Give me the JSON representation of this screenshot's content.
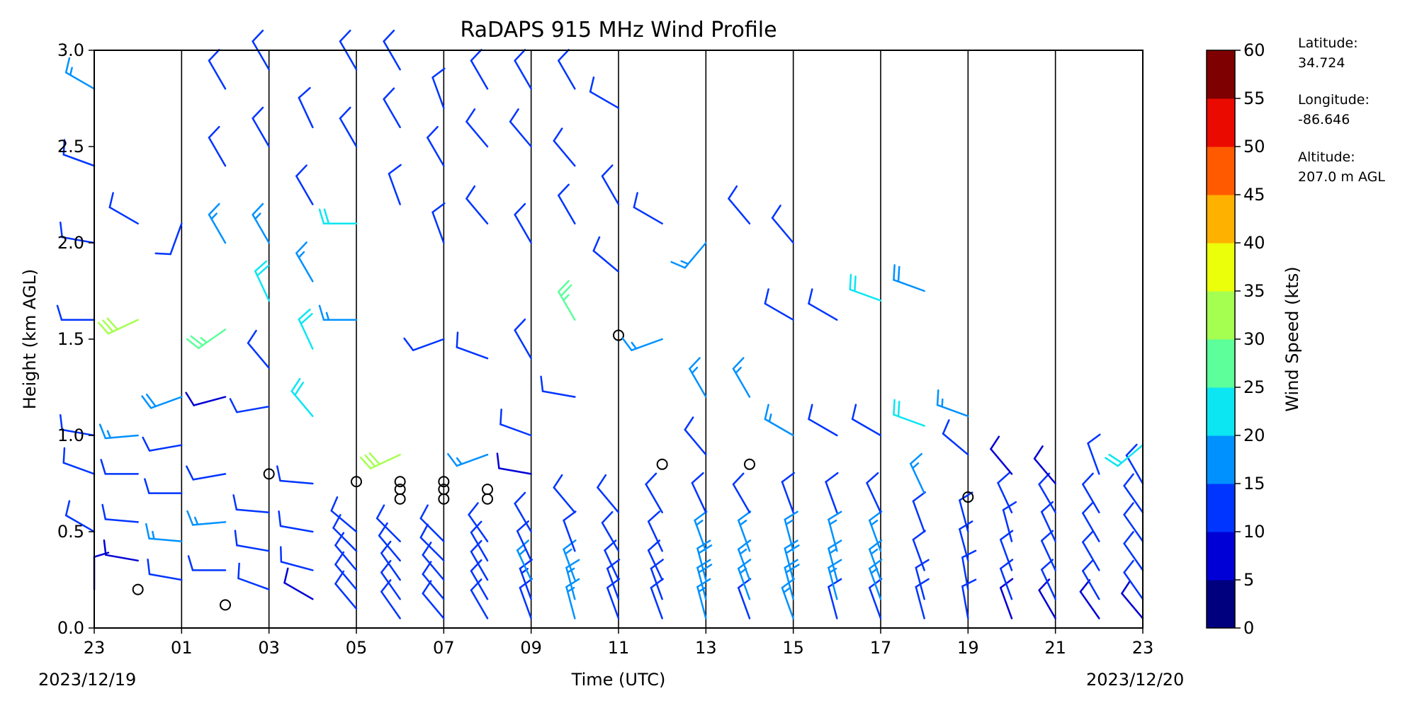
{
  "chart_data": {
    "type": "wind-barb-profile",
    "title": "RaDAPS 915 MHz Wind Profile",
    "xlabel": "Time (UTC)",
    "ylabel": "Height (km AGL)",
    "date_start": "2023/12/19",
    "date_end": "2023/12/20",
    "x_tick_labels": [
      "23",
      "01",
      "03",
      "05",
      "07",
      "09",
      "11",
      "13",
      "15",
      "17",
      "19",
      "21",
      "23"
    ],
    "y_tick_labels": [
      "0.0",
      "0.5",
      "1.0",
      "1.5",
      "2.0",
      "2.5",
      "3.0"
    ],
    "y_ticks": [
      0,
      0.5,
      1,
      1.5,
      2,
      2.5,
      3
    ],
    "ylim": [
      0,
      3
    ],
    "xlim_hours_utc": [
      23,
      47
    ],
    "grid_vertical_hours": [
      25,
      27,
      29,
      31,
      33,
      35,
      37,
      39,
      41,
      43,
      45
    ],
    "colorbar": {
      "label": "Wind Speed (kts)",
      "tick_labels": [
        "0",
        "5",
        "10",
        "15",
        "20",
        "25",
        "30",
        "35",
        "40",
        "45",
        "50",
        "55",
        "60"
      ],
      "range": [
        0,
        60
      ],
      "colors": [
        "#00007f",
        "#0000d6",
        "#0035ff",
        "#0091ff",
        "#0ce6f2",
        "#5cff9a",
        "#a5ff51",
        "#ecff0a",
        "#ffb100",
        "#ff5a00",
        "#eb0a00",
        "#7f0000"
      ]
    },
    "site_info": {
      "latitude_label": "Latitude:",
      "latitude": "34.724",
      "longitude_label": "Longitude:",
      "longitude": "-86.646",
      "altitude_label": "Altitude:",
      "altitude": "207.0 m AGL"
    },
    "profiles": [
      {
        "hour": 23.0,
        "levels": [
          [
            0.2,
            0,
            8
          ],
          [
            0.5,
            300,
            10
          ],
          [
            0.8,
            290,
            10
          ],
          [
            1.0,
            280,
            12
          ],
          [
            1.6,
            270,
            12
          ],
          [
            2.0,
            280,
            12
          ],
          [
            2.4,
            290,
            12
          ],
          [
            2.8,
            300,
            15
          ]
        ]
      },
      {
        "hour": 24.0,
        "levels": [
          [
            0.2,
            0,
            0
          ],
          [
            0.35,
            280,
            8
          ],
          [
            0.55,
            275,
            10
          ],
          [
            0.8,
            270,
            12
          ],
          [
            1.0,
            265,
            15
          ],
          [
            1.6,
            245,
            30
          ],
          [
            2.1,
            300,
            10
          ]
        ]
      },
      {
        "hour": 25.0,
        "levels": [
          [
            0.25,
            280,
            10
          ],
          [
            0.45,
            275,
            15
          ],
          [
            0.7,
            270,
            12
          ],
          [
            0.95,
            260,
            12
          ],
          [
            1.2,
            250,
            18
          ],
          [
            2.1,
            200,
            12
          ]
        ]
      },
      {
        "hour": 26.0,
        "levels": [
          [
            0.12,
            0,
            0
          ],
          [
            0.3,
            270,
            10
          ],
          [
            0.55,
            265,
            15
          ],
          [
            0.8,
            260,
            10
          ],
          [
            1.2,
            255,
            8
          ],
          [
            1.55,
            235,
            25
          ],
          [
            2.0,
            330,
            15
          ],
          [
            2.4,
            330,
            10
          ],
          [
            2.8,
            330,
            12
          ]
        ]
      },
      {
        "hour": 27.0,
        "levels": [
          [
            0.2,
            290,
            10
          ],
          [
            0.4,
            280,
            12
          ],
          [
            0.6,
            275,
            10
          ],
          [
            0.8,
            0,
            0
          ],
          [
            1.15,
            260,
            10
          ],
          [
            1.35,
            320,
            12
          ],
          [
            1.7,
            335,
            22
          ],
          [
            2.0,
            330,
            15
          ],
          [
            2.5,
            330,
            12
          ],
          [
            2.9,
            330,
            10
          ]
        ]
      },
      {
        "hour": 28.0,
        "levels": [
          [
            0.15,
            300,
            8
          ],
          [
            0.3,
            285,
            10
          ],
          [
            0.5,
            280,
            12
          ],
          [
            0.75,
            275,
            10
          ],
          [
            1.1,
            320,
            20
          ],
          [
            1.45,
            335,
            22
          ],
          [
            1.8,
            330,
            15
          ],
          [
            2.2,
            330,
            12
          ],
          [
            2.6,
            335,
            12
          ]
        ]
      },
      {
        "hour": 29.0,
        "levels": [
          [
            0.1,
            320,
            12
          ],
          [
            0.2,
            320,
            12
          ],
          [
            0.3,
            320,
            12
          ],
          [
            0.4,
            315,
            12
          ],
          [
            0.5,
            310,
            12
          ],
          [
            0.76,
            0,
            0
          ],
          [
            1.6,
            270,
            15
          ],
          [
            2.1,
            270,
            20
          ],
          [
            2.5,
            330,
            12
          ],
          [
            2.9,
            330,
            12
          ]
        ]
      },
      {
        "hour": 30.0,
        "levels": [
          [
            0.05,
            325,
            12
          ],
          [
            0.15,
            325,
            12
          ],
          [
            0.25,
            325,
            12
          ],
          [
            0.35,
            320,
            12
          ],
          [
            0.45,
            315,
            12
          ],
          [
            0.67,
            0,
            0
          ],
          [
            0.72,
            0,
            0
          ],
          [
            0.76,
            0,
            0
          ],
          [
            0.9,
            245,
            30
          ],
          [
            2.2,
            340,
            10
          ],
          [
            2.6,
            330,
            12
          ],
          [
            2.9,
            330,
            12
          ]
        ]
      },
      {
        "hour": 31.0,
        "levels": [
          [
            0.05,
            320,
            10
          ],
          [
            0.15,
            320,
            10
          ],
          [
            0.25,
            320,
            12
          ],
          [
            0.35,
            315,
            12
          ],
          [
            0.45,
            315,
            10
          ],
          [
            0.67,
            0,
            0
          ],
          [
            0.72,
            0,
            0
          ],
          [
            0.76,
            0,
            0
          ],
          [
            1.5,
            250,
            10
          ],
          [
            2.0,
            340,
            12
          ],
          [
            2.4,
            330,
            12
          ],
          [
            2.7,
            340,
            12
          ]
        ]
      },
      {
        "hour": 32.0,
        "levels": [
          [
            0.05,
            330,
            10
          ],
          [
            0.15,
            330,
            10
          ],
          [
            0.25,
            330,
            12
          ],
          [
            0.35,
            330,
            12
          ],
          [
            0.45,
            325,
            12
          ],
          [
            0.67,
            0,
            0
          ],
          [
            0.72,
            0,
            0
          ],
          [
            0.9,
            250,
            15
          ],
          [
            1.4,
            290,
            10
          ],
          [
            2.1,
            320,
            10
          ],
          [
            2.5,
            320,
            12
          ],
          [
            2.8,
            330,
            10
          ]
        ]
      },
      {
        "hour": 33.0,
        "levels": [
          [
            0.05,
            340,
            12
          ],
          [
            0.15,
            340,
            14
          ],
          [
            0.25,
            335,
            15
          ],
          [
            0.35,
            335,
            12
          ],
          [
            0.5,
            330,
            10
          ],
          [
            0.8,
            280,
            8
          ],
          [
            1.0,
            290,
            10
          ],
          [
            1.4,
            330,
            10
          ],
          [
            2.0,
            330,
            12
          ],
          [
            2.5,
            320,
            12
          ],
          [
            2.8,
            330,
            10
          ]
        ]
      },
      {
        "hour": 34.0,
        "levels": [
          [
            0.05,
            345,
            15
          ],
          [
            0.15,
            345,
            15
          ],
          [
            0.25,
            340,
            15
          ],
          [
            0.4,
            340,
            12
          ],
          [
            0.6,
            320,
            10
          ],
          [
            1.2,
            280,
            12
          ],
          [
            1.6,
            330,
            25
          ],
          [
            2.1,
            330,
            12
          ],
          [
            2.4,
            320,
            12
          ],
          [
            2.8,
            330,
            10
          ]
        ]
      },
      {
        "hour": 35.0,
        "levels": [
          [
            0.05,
            340,
            10
          ],
          [
            0.15,
            340,
            12
          ],
          [
            0.25,
            335,
            12
          ],
          [
            0.4,
            330,
            12
          ],
          [
            0.6,
            320,
            10
          ],
          [
            1.52,
            0,
            0
          ],
          [
            1.85,
            310,
            12
          ],
          [
            2.2,
            330,
            10
          ],
          [
            2.7,
            300,
            12
          ]
        ]
      },
      {
        "hour": 36.0,
        "levels": [
          [
            0.05,
            340,
            12
          ],
          [
            0.15,
            340,
            12
          ],
          [
            0.25,
            335,
            12
          ],
          [
            0.4,
            335,
            12
          ],
          [
            0.6,
            330,
            10
          ],
          [
            0.85,
            0,
            0
          ],
          [
            1.5,
            250,
            15
          ],
          [
            2.1,
            300,
            12
          ]
        ]
      },
      {
        "hour": 37.0,
        "levels": [
          [
            0.05,
            345,
            15
          ],
          [
            0.15,
            345,
            18
          ],
          [
            0.25,
            345,
            18
          ],
          [
            0.4,
            340,
            15
          ],
          [
            0.6,
            335,
            10
          ],
          [
            0.9,
            320,
            10
          ],
          [
            1.2,
            330,
            15
          ],
          [
            2.0,
            220,
            15
          ]
        ]
      },
      {
        "hour": 38.0,
        "levels": [
          [
            0.05,
            340,
            12
          ],
          [
            0.15,
            340,
            15
          ],
          [
            0.25,
            340,
            15
          ],
          [
            0.4,
            340,
            15
          ],
          [
            0.6,
            330,
            12
          ],
          [
            0.85,
            0,
            0
          ],
          [
            1.2,
            330,
            15
          ],
          [
            2.1,
            320,
            12
          ]
        ]
      },
      {
        "hour": 39.0,
        "levels": [
          [
            0.05,
            340,
            15
          ],
          [
            0.15,
            345,
            18
          ],
          [
            0.25,
            345,
            18
          ],
          [
            0.4,
            345,
            15
          ],
          [
            0.6,
            340,
            12
          ],
          [
            1.0,
            300,
            15
          ],
          [
            1.6,
            300,
            12
          ],
          [
            2.0,
            320,
            12
          ]
        ]
      },
      {
        "hour": 40.0,
        "levels": [
          [
            0.05,
            345,
            12
          ],
          [
            0.15,
            345,
            15
          ],
          [
            0.25,
            345,
            15
          ],
          [
            0.4,
            345,
            15
          ],
          [
            0.6,
            340,
            12
          ],
          [
            1.0,
            300,
            12
          ],
          [
            1.6,
            300,
            12
          ]
        ]
      },
      {
        "hour": 41.0,
        "levels": [
          [
            0.05,
            340,
            12
          ],
          [
            0.15,
            340,
            15
          ],
          [
            0.25,
            340,
            15
          ],
          [
            0.4,
            340,
            15
          ],
          [
            0.6,
            335,
            12
          ],
          [
            1.0,
            300,
            10
          ],
          [
            1.7,
            290,
            20
          ]
        ]
      },
      {
        "hour": 42.0,
        "levels": [
          [
            0.05,
            345,
            12
          ],
          [
            0.15,
            345,
            12
          ],
          [
            0.3,
            340,
            12
          ],
          [
            0.5,
            340,
            12
          ],
          [
            0.7,
            335,
            15
          ],
          [
            1.05,
            290,
            20
          ],
          [
            1.75,
            290,
            18
          ]
        ]
      },
      {
        "hour": 43.0,
        "levels": [
          [
            0.05,
            350,
            10
          ],
          [
            0.2,
            350,
            10
          ],
          [
            0.35,
            345,
            10
          ],
          [
            0.5,
            345,
            10
          ],
          [
            0.68,
            0,
            0
          ],
          [
            0.9,
            310,
            10
          ],
          [
            1.1,
            290,
            15
          ]
        ]
      },
      {
        "hour": 44.0,
        "levels": [
          [
            0.05,
            340,
            8
          ],
          [
            0.15,
            340,
            10
          ],
          [
            0.3,
            340,
            10
          ],
          [
            0.45,
            345,
            10
          ],
          [
            0.6,
            335,
            10
          ],
          [
            0.8,
            320,
            8
          ]
        ]
      },
      {
        "hour": 45.0,
        "levels": [
          [
            0.05,
            330,
            8
          ],
          [
            0.15,
            335,
            10
          ],
          [
            0.3,
            335,
            10
          ],
          [
            0.45,
            335,
            10
          ],
          [
            0.6,
            330,
            10
          ],
          [
            0.75,
            320,
            8
          ]
        ]
      },
      {
        "hour": 46.0,
        "levels": [
          [
            0.05,
            325,
            8
          ],
          [
            0.15,
            330,
            10
          ],
          [
            0.3,
            330,
            10
          ],
          [
            0.45,
            330,
            10
          ],
          [
            0.6,
            330,
            12
          ],
          [
            0.8,
            340,
            12
          ]
        ]
      },
      {
        "hour": 47.0,
        "levels": [
          [
            0.05,
            320,
            8
          ],
          [
            0.15,
            325,
            10
          ],
          [
            0.3,
            325,
            10
          ],
          [
            0.45,
            325,
            10
          ],
          [
            0.6,
            325,
            10
          ],
          [
            0.75,
            330,
            10
          ],
          [
            0.95,
            230,
            20
          ]
        ]
      }
    ]
  }
}
